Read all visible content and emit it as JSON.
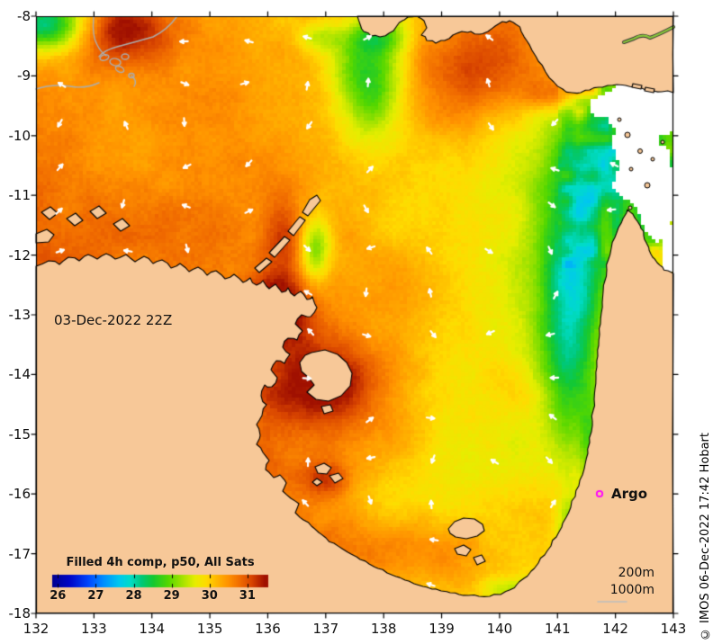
{
  "figure": {
    "date_label": "03-Dec-2022 22Z",
    "copyright": "© IMOS 06-Dec-2022 17:42 Hobart",
    "argo_label": "Argo",
    "depth_200_label": "200m",
    "depth_1000_label": "1000m"
  },
  "axes": {
    "x_tick_labels": [
      "132",
      "133",
      "134",
      "135",
      "136",
      "137",
      "138",
      "139",
      "140",
      "141",
      "142",
      "143"
    ],
    "y_tick_labels": [
      "-8",
      "-9",
      "-10",
      "-11",
      "-12",
      "-13",
      "-14",
      "-15",
      "-16",
      "-17",
      "-18"
    ]
  },
  "colorbar": {
    "title": "Filled 4h comp, p50, All Sats",
    "tick_labels": [
      "26",
      "27",
      "28",
      "29",
      "30",
      "31"
    ],
    "tick_values": [
      26,
      27,
      28,
      29,
      30,
      31
    ],
    "range": [
      25.8,
      31.5
    ],
    "stops": [
      [
        25.8,
        "#00008C"
      ],
      [
        26.3,
        "#0006C8"
      ],
      [
        26.8,
        "#0048FF"
      ],
      [
        27.2,
        "#0090FF"
      ],
      [
        27.6,
        "#00C8F0"
      ],
      [
        27.9,
        "#00DCC8"
      ],
      [
        28.2,
        "#00C878"
      ],
      [
        28.5,
        "#14C832"
      ],
      [
        28.9,
        "#55D800"
      ],
      [
        29.3,
        "#AAE400"
      ],
      [
        29.6,
        "#E6EE00"
      ],
      [
        29.9,
        "#FFDC00"
      ],
      [
        30.2,
        "#FFB400"
      ],
      [
        30.5,
        "#FF9000"
      ],
      [
        30.8,
        "#F06A00"
      ],
      [
        31.1,
        "#D84400"
      ],
      [
        31.45,
        "#A01000"
      ]
    ]
  },
  "colors": {
    "land": "#F7C898",
    "coastline": "#000000",
    "no_data": "#FFFFFF",
    "bathy_contour": "#ACACAC",
    "current_arrow": "#FFFFFF",
    "argo_marker": "#FF00FF",
    "river": "#8CC83C",
    "axis": "#000000",
    "tick_text": "#111111"
  }
}
